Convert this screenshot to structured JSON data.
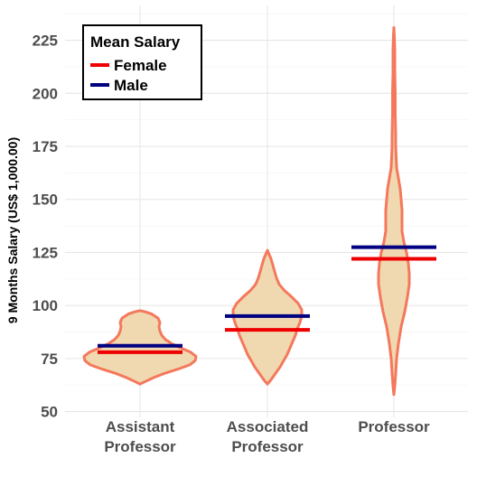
{
  "chart_data": {
    "type": "violin",
    "categories": [
      {
        "line1": "Assistant",
        "line2": "Professor"
      },
      {
        "line1": "Associated",
        "line2": "Professor"
      },
      {
        "line1": "Professor",
        "line2": ""
      }
    ],
    "ylabel": "9 Months Salary (US$ 1,000.00)",
    "ylim": [
      50,
      232
    ],
    "yticks": [
      50,
      75,
      100,
      125,
      150,
      175,
      200,
      225
    ],
    "legend": {
      "title": "Mean Salary",
      "placement": "top-left",
      "entries": [
        {
          "label": "Female",
          "color": "#ee0000"
        },
        {
          "label": "Male",
          "color": "#000080"
        }
      ]
    },
    "series": [
      {
        "name": "Female",
        "values": [
          78.0,
          88.5,
          122.0
        ]
      },
      {
        "name": "Male",
        "values": [
          81.0,
          95.0,
          127.5
        ]
      }
    ],
    "violin_fill": "#f0d9b0",
    "violin_stroke": "#f4785c",
    "grid": true
  }
}
